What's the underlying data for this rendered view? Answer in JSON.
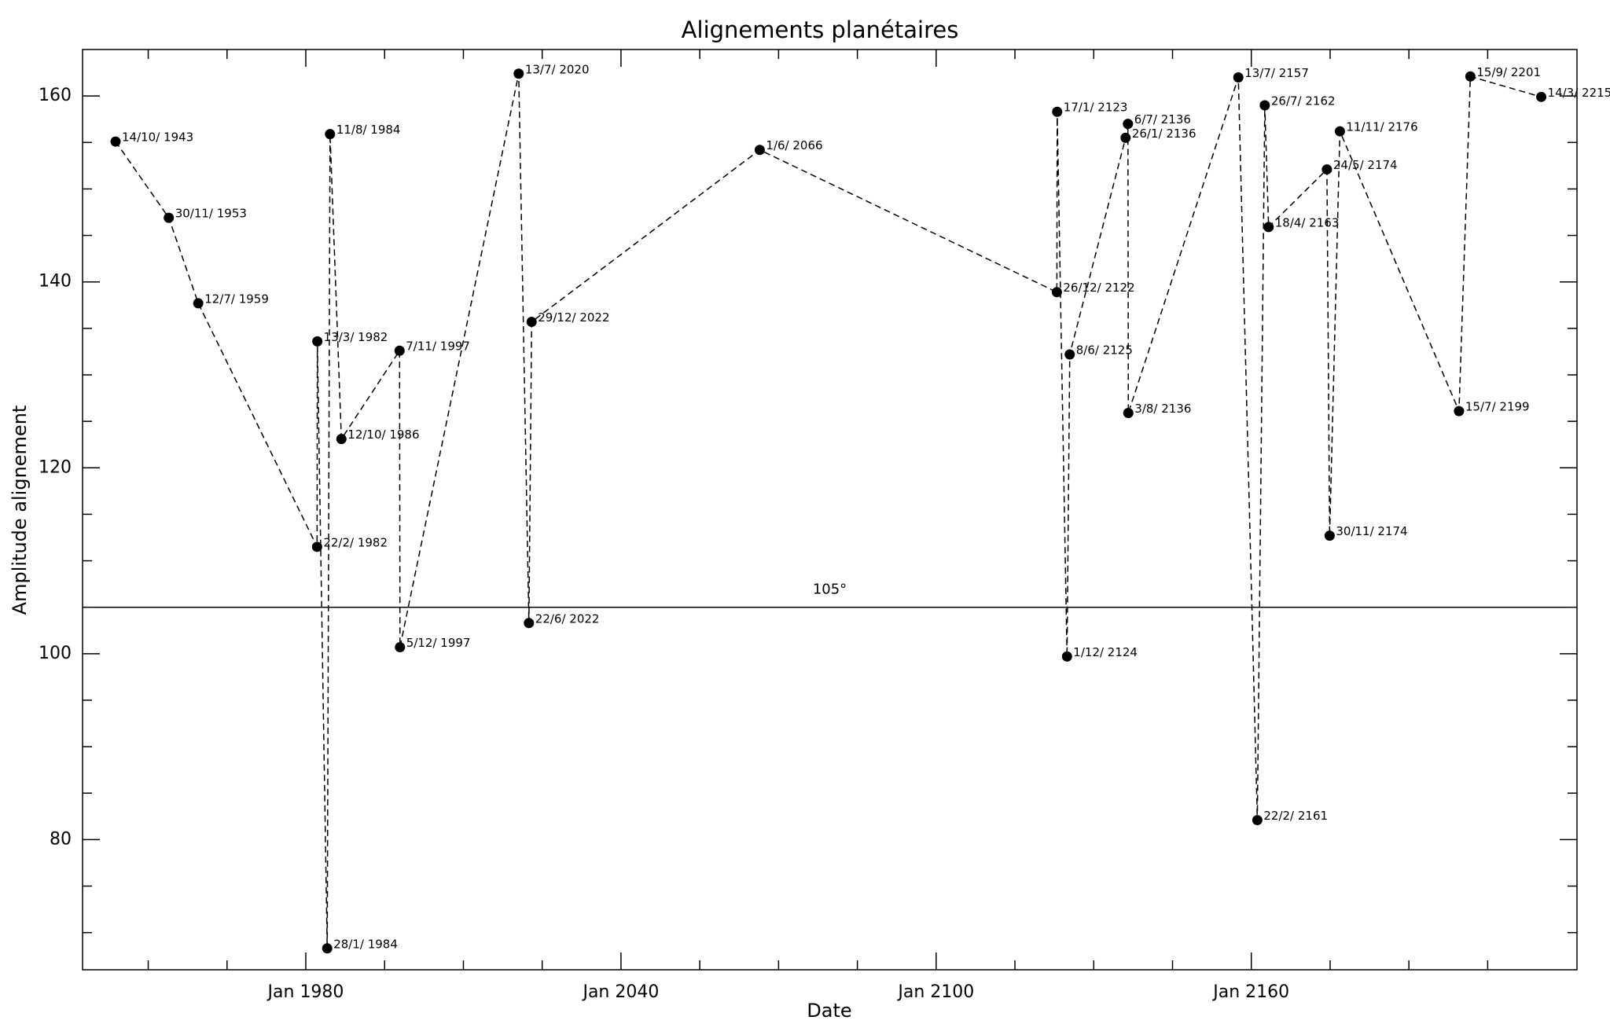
{
  "chart_data": {
    "type": "line",
    "title": "Alignements planétaires",
    "xlabel": "Date",
    "ylabel": "Amplitude alignement",
    "x": [
      "1943-10-14",
      "1953-11-30",
      "1959-07-12",
      "1982-02-22",
      "1982-03-13",
      "1984-01-28",
      "1984-08-11",
      "1986-10-12",
      "1997-11-07",
      "1997-12-05",
      "2020-07-13",
      "2022-06-22",
      "2022-12-29",
      "2066-06-01",
      "2122-12-26",
      "2123-01-17",
      "2124-12-01",
      "2125-06-08",
      "2136-01-26",
      "2136-07-06",
      "2136-08-03",
      "2157-07-13",
      "2161-02-22",
      "2162-07-26",
      "2163-04-18",
      "2174-05-24",
      "2174-11-30",
      "2176-11-11",
      "2199-07-15",
      "2201-09-15",
      "2215-03-14"
    ],
    "values": [
      155.1,
      146.9,
      137.7,
      111.5,
      133.6,
      68.3,
      155.9,
      123.1,
      132.6,
      100.7,
      162.4,
      103.3,
      135.7,
      154.2,
      138.9,
      158.3,
      99.7,
      132.2,
      155.5,
      157.0,
      125.9,
      162.0,
      82.1,
      159.0,
      145.9,
      152.1,
      112.7,
      156.2,
      126.1,
      162.1,
      159.9
    ],
    "point_labels": [
      "14/10/ 1943",
      "30/11/ 1953",
      "12/7/ 1959",
      "22/2/ 1982",
      "13/3/ 1982",
      "28/1/ 1984",
      "11/8/ 1984",
      "12/10/ 1986",
      "7/11/ 1997",
      "5/12/ 1997",
      "13/7/ 2020",
      "22/6/ 2022",
      "29/12/ 2022",
      "1/6/ 2066",
      "26/12/ 2122",
      "17/1/ 2123",
      "1/12/ 2124",
      "8/6/ 2125",
      "26/1/ 2136",
      "6/7/ 2136",
      "3/8/ 2136",
      "13/7/ 2157",
      "22/2/ 2161",
      "26/7/ 2162",
      "18/4/ 2163",
      "24/5/ 2174",
      "30/11/ 2174",
      "11/11/ 2176",
      "15/7/ 2199",
      "15/9/ 2201",
      "14/3/ 2215"
    ],
    "color": "#000000",
    "line_style": "dashed",
    "xlim": [
      "1937-07-01",
      "2222-01-01"
    ],
    "xticks": [
      {
        "value": "1980-01-01",
        "label": "Jan 1980"
      },
      {
        "value": "2040-01-01",
        "label": "Jan 2040"
      },
      {
        "value": "2100-01-01",
        "label": "Jan 2100"
      },
      {
        "value": "2160-01-01",
        "label": "Jan 2160"
      }
    ],
    "xminorticks": [
      "1950-01-01",
      "1965-01-01",
      "1995-01-01",
      "2010-01-01",
      "2025-01-01",
      "2055-01-01",
      "2070-01-01",
      "2085-01-01",
      "2115-01-01",
      "2130-01-01",
      "2145-01-01",
      "2175-01-01",
      "2190-01-01",
      "2205-01-01"
    ],
    "ylim": [
      66,
      165
    ],
    "yticks": [
      80,
      100,
      120,
      140,
      160
    ],
    "yminorticks": [
      70,
      75,
      85,
      90,
      95,
      105,
      110,
      115,
      125,
      130,
      135,
      145,
      150,
      155
    ],
    "hline": {
      "value": 105,
      "label": "105°"
    }
  }
}
